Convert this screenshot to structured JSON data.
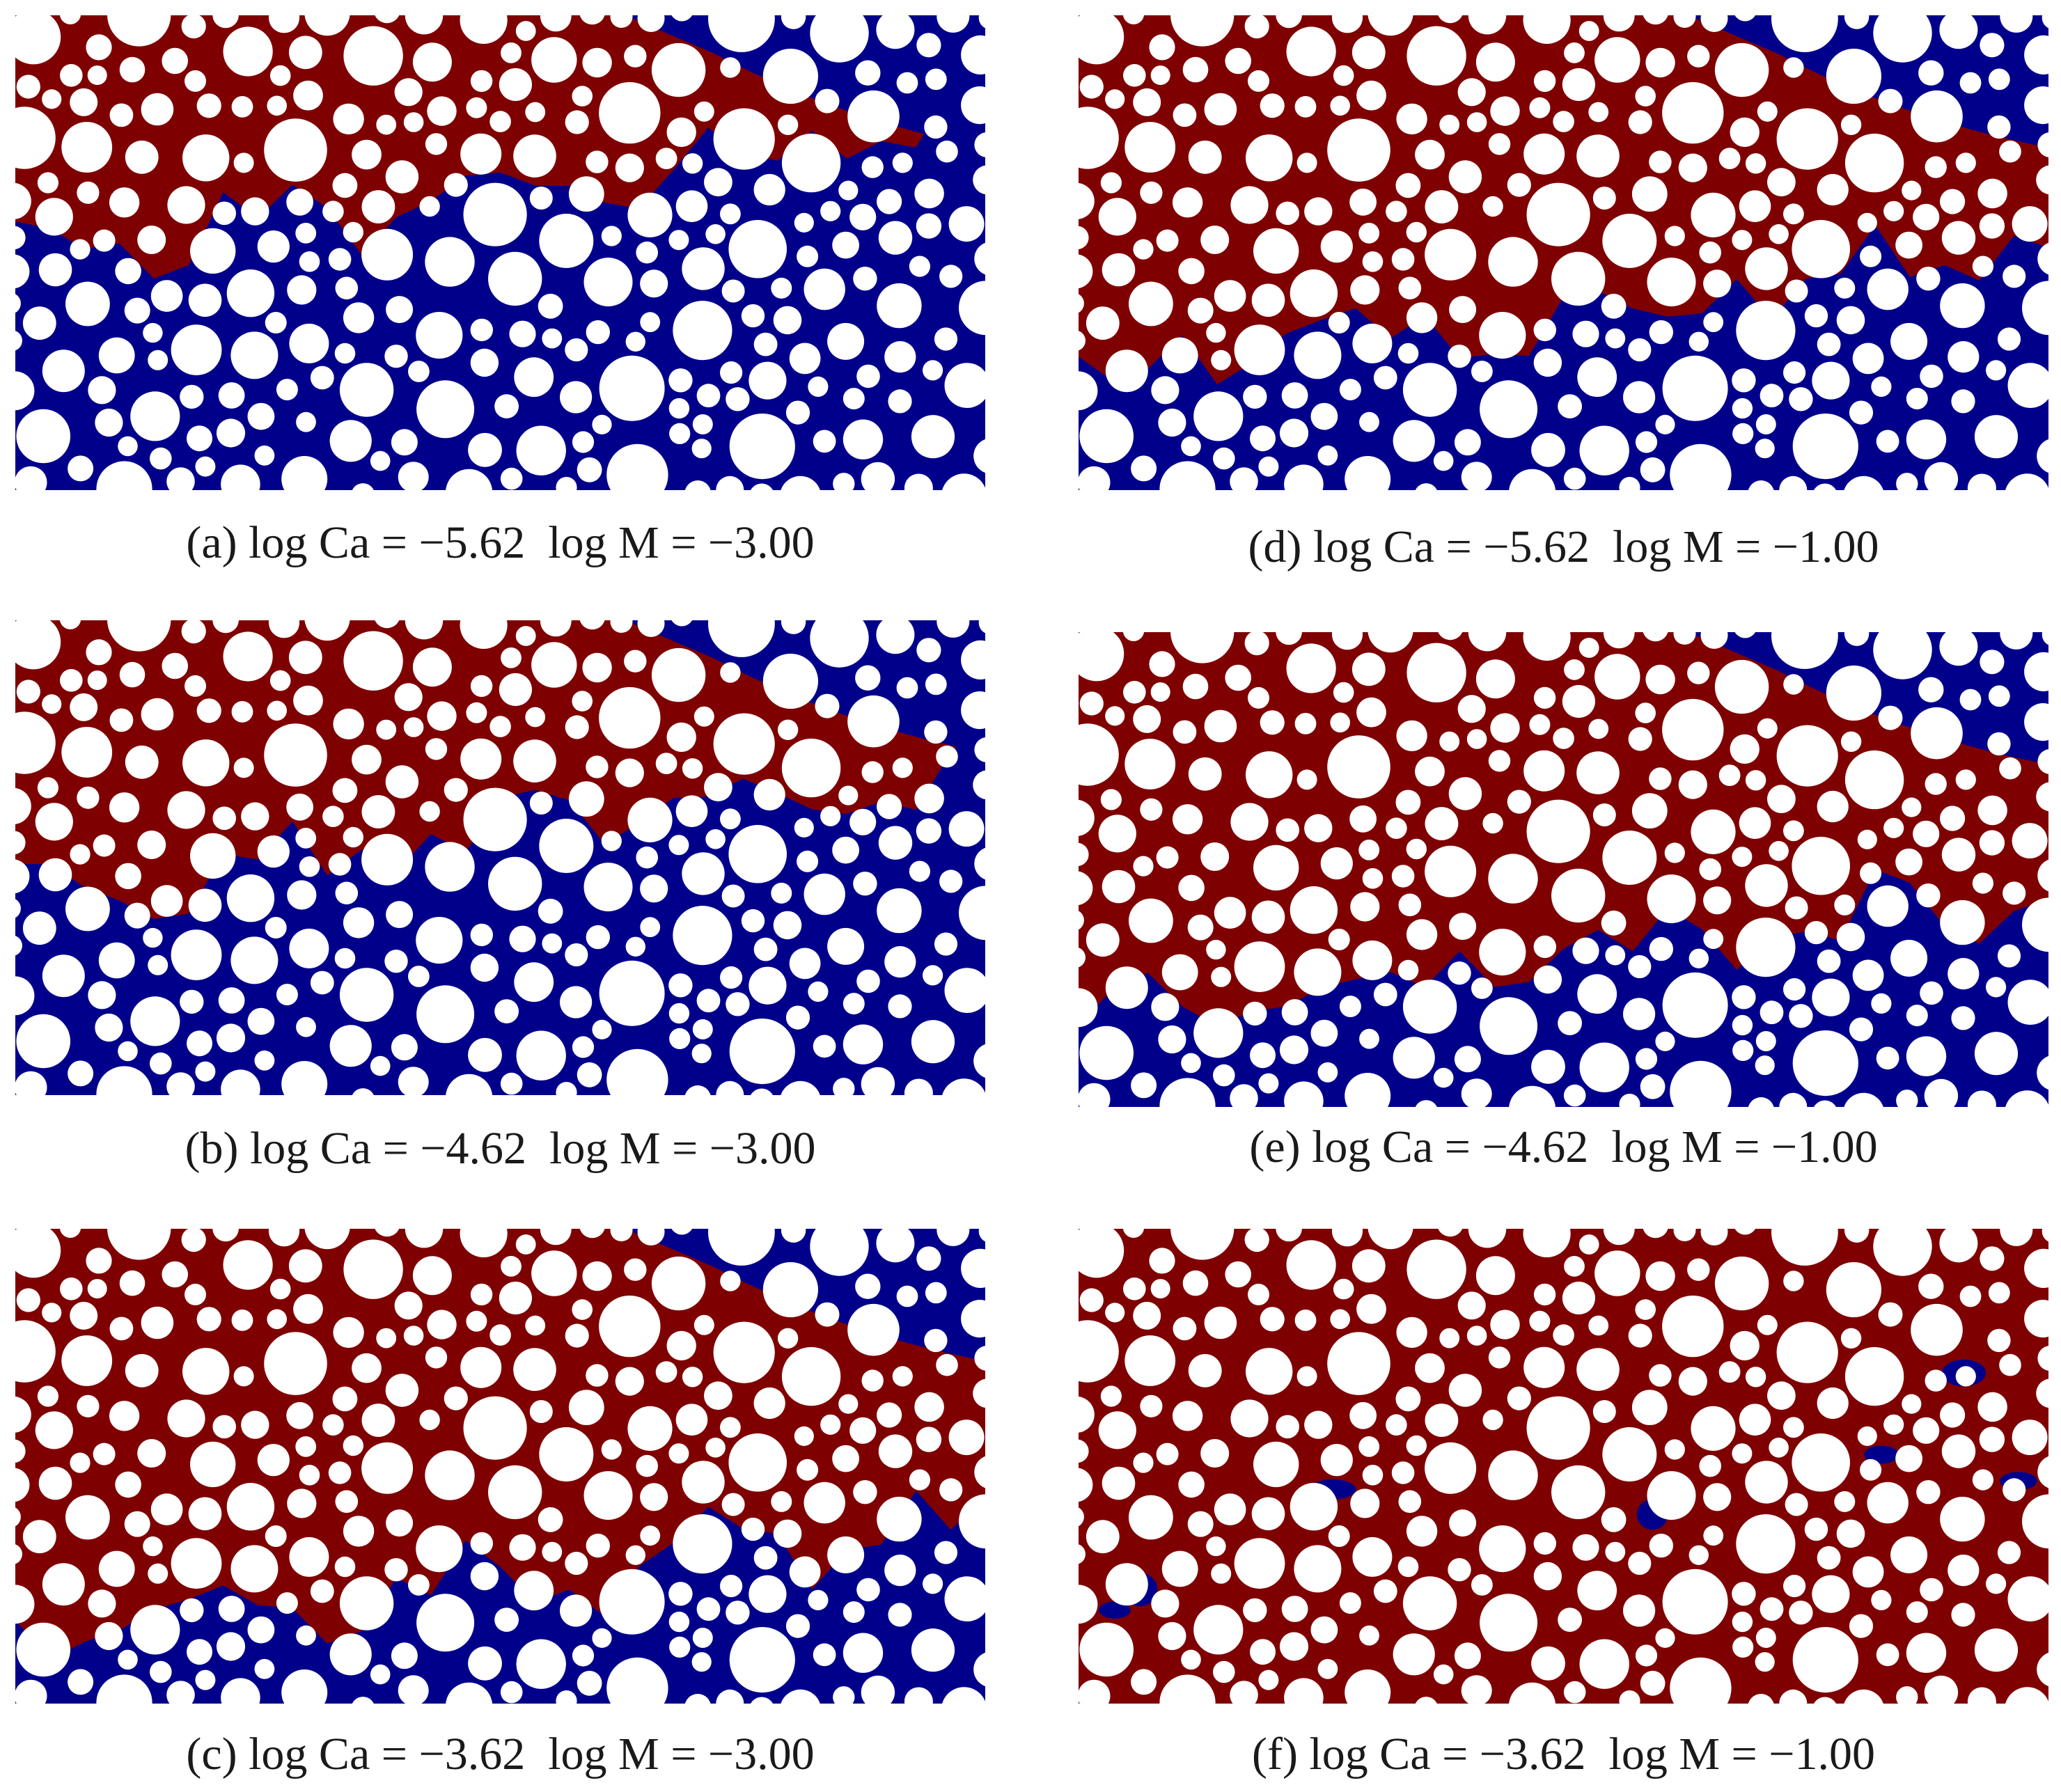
{
  "colors": {
    "phase_red": "#7f0000",
    "phase_blue": "#00008b",
    "grain": "#ffffff"
  },
  "panels": [
    {
      "id": "a",
      "caption": "(a) log Ca = −5.62  log M = −3.00",
      "blue_fraction": 0.62
    },
    {
      "id": "b",
      "caption": "(b) log Ca = −4.62  log M = −3.00",
      "blue_fraction": 0.55
    },
    {
      "id": "c",
      "caption": "(c) log Ca = −3.62  log M = −3.00",
      "blue_fraction": 0.25
    },
    {
      "id": "d",
      "caption": "(d) log Ca = −5.62  log M = −1.00",
      "blue_fraction": 0.38
    },
    {
      "id": "e",
      "caption": "(e) log Ca = −4.62  log M = −1.00",
      "blue_fraction": 0.3
    },
    {
      "id": "f",
      "caption": "(f) log Ca = −3.62  log M = −1.00",
      "blue_fraction": 0.04
    }
  ]
}
